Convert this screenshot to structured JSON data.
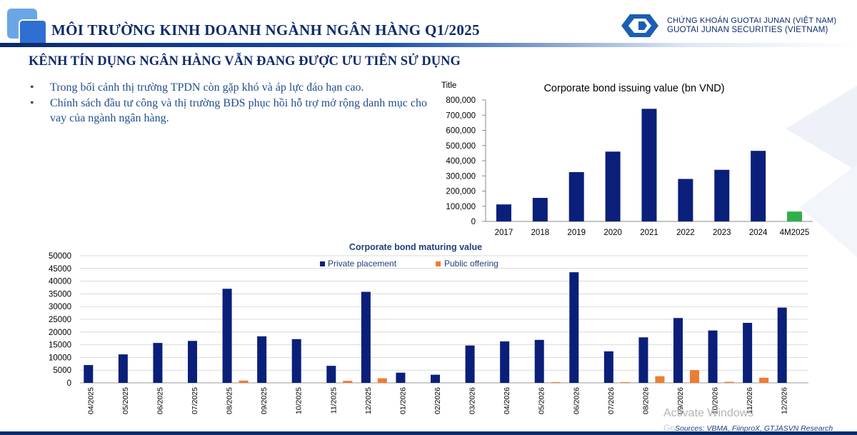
{
  "header": {
    "title": "MÔI TRƯỜNG KINH DOANH NGÀNH NGÂN HÀNG Q1/2025",
    "company_vn": "CHỨNG KHOÁN GUOTAI JUNAN (VIỆT NAM)",
    "company_en": "GUOTAI JUNAN SECURITIES (VIETNAM)"
  },
  "section": {
    "subtitle": "KÊNH TÍN DỤNG NGÂN HÀNG VẪN ĐANG ĐƯỢC ƯU TIÊN SỬ DỤNG",
    "bullets": [
      "Trong bối cảnh thị trường TPDN còn gặp khó và áp lực đáo hạn cao.",
      "Chính sách đầu tư công và thị trường BĐS phục hồi hỗ trợ mở rộng danh mục cho vay của ngành ngân hàng."
    ]
  },
  "colors": {
    "navy": "#0b2a6b",
    "bar_blue": "#0a1f7a",
    "bar_green": "#2fb04a",
    "bar_orange": "#ed7d31",
    "text_blue": "#1f4e8c"
  },
  "chart_data": [
    {
      "type": "bar",
      "corner_label": "Title",
      "title": "Corporate bond issuing value (bn VND)",
      "categories": [
        "2017",
        "2018",
        "2019",
        "2020",
        "2021",
        "2022",
        "2023",
        "2024",
        "4M2025"
      ],
      "values": [
        112000,
        155000,
        325000,
        460000,
        742000,
        280000,
        340000,
        465000,
        65000
      ],
      "highlight_last": true,
      "ylim": [
        0,
        800000
      ],
      "yticks": [
        "0",
        "100,000",
        "200,000",
        "300,000",
        "400,000",
        "500,000",
        "600,000",
        "700,000",
        "800,000"
      ],
      "grid": false
    },
    {
      "type": "bar",
      "title": "Corporate bond maturing value",
      "legend_position": "top",
      "categories": [
        "04/2025",
        "05/2025",
        "06/2025",
        "07/2025",
        "08/2025",
        "09/2025",
        "10/2025",
        "11/2025",
        "12/2025",
        "01/2026",
        "02/2026",
        "03/2026",
        "04/2026",
        "05/2026",
        "06/2026",
        "07/2026",
        "08/2026",
        "09/2026",
        "10/2026",
        "11/2026",
        "12/2026"
      ],
      "series": [
        {
          "name": "Private placement",
          "values": [
            7000,
            11200,
            15700,
            16500,
            37000,
            18300,
            17200,
            6700,
            35800,
            4000,
            3200,
            14700,
            16300,
            16900,
            43500,
            12400,
            17900,
            25500,
            20600,
            23600,
            29600
          ]
        },
        {
          "name": "Public offering",
          "values": [
            0,
            0,
            0,
            0,
            900,
            0,
            0,
            800,
            1800,
            0,
            0,
            0,
            0,
            300,
            0,
            300,
            2600,
            5000,
            400,
            2000,
            0
          ]
        }
      ],
      "ylim": [
        0,
        50000
      ],
      "yticks": [
        "0",
        "5000",
        "10000",
        "15000",
        "20000",
        "25000",
        "30000",
        "35000",
        "40000",
        "45000",
        "50000"
      ],
      "grid": true
    }
  ],
  "footer": {
    "source": "Sources: VBMA, FiinproX, GTJASVN Research",
    "watermark_line1": "Activate Windows",
    "watermark_line2": "Go"
  }
}
